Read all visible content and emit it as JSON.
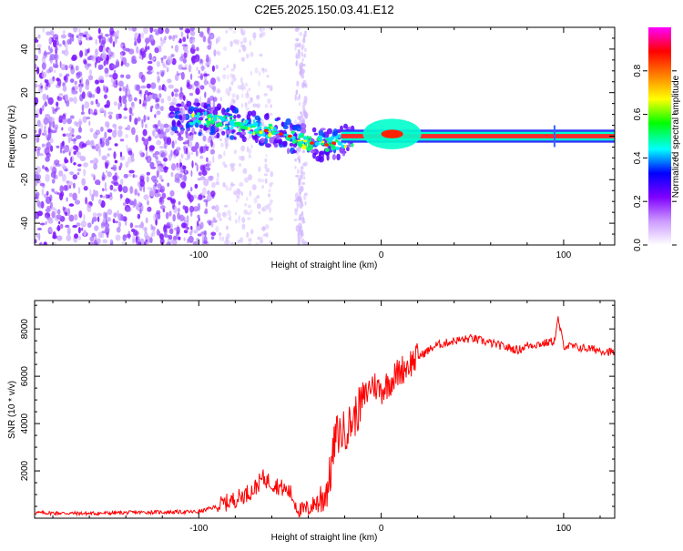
{
  "figure": {
    "title": "C2E5.2025.150.03.41.E12"
  },
  "chart_data": [
    {
      "type": "heatmap",
      "xlabel": "Height of straight line (km)",
      "ylabel": "Frequency (Hz)",
      "xlim": [
        -190,
        128
      ],
      "ylim": [
        -50,
        50
      ],
      "xticks": [
        -100,
        0,
        100
      ],
      "xtick_labels": [
        "-100",
        "0",
        "100"
      ],
      "yticks": [
        -40,
        -20,
        0,
        20,
        40
      ],
      "ytick_labels": [
        "-40",
        "-20",
        "0",
        "20",
        "40"
      ],
      "colorbar": {
        "label": "Normalized spectral amplitude",
        "range": [
          0,
          1
        ],
        "ticks": [
          0,
          0.2,
          0.4,
          0.6,
          0.8
        ],
        "tick_labels": [
          "0.0",
          "0.2",
          "0.4",
          "0.6",
          "0.8"
        ],
        "colors": [
          "#ffffff",
          "#cc99ff",
          "#7f00ff",
          "#0000ff",
          "#00ffff",
          "#00ff00",
          "#ffff00",
          "#ff8000",
          "#ff0000",
          "#ff00ff"
        ]
      },
      "centerline": {
        "x": [
          -110,
          -100,
          -90,
          -80,
          -70,
          -60,
          -50,
          -40,
          -30,
          -20,
          -10,
          0,
          5,
          10,
          15,
          128
        ],
        "y": [
          8,
          8,
          7,
          6,
          4,
          2,
          0,
          -3,
          -4,
          -2,
          0,
          0,
          1,
          0,
          0,
          0
        ]
      }
    },
    {
      "type": "line",
      "xlabel": "Height of straight line (km)",
      "ylabel": "SNR (10 * v/v)",
      "xlim": [
        -190,
        128
      ],
      "ylim": [
        0,
        9200
      ],
      "xticks": [
        -100,
        0,
        100
      ],
      "xtick_labels": [
        "-100",
        "0",
        "100"
      ],
      "yticks": [
        2000,
        4000,
        6000,
        8000
      ],
      "ytick_labels": [
        "2000",
        "4000",
        "6000",
        "8000"
      ],
      "series": [
        {
          "color": "#ff0000",
          "x": [
            -190,
            -160,
            -130,
            -100,
            -90,
            -80,
            -70,
            -65,
            -60,
            -55,
            -50,
            -45,
            -40,
            -35,
            -32,
            -30,
            -28,
            -25,
            -20,
            -15,
            -10,
            -5,
            0,
            10,
            20,
            30,
            40,
            50,
            60,
            70,
            75,
            80,
            90,
            95,
            97,
            100,
            110,
            120,
            128
          ],
          "y": [
            230,
            200,
            250,
            270,
            500,
            800,
            1200,
            1700,
            1500,
            1300,
            1100,
            300,
            400,
            700,
            900,
            1200,
            1800,
            3500,
            3700,
            4200,
            5000,
            5700,
            5400,
            6200,
            6800,
            7300,
            7500,
            7600,
            7400,
            7200,
            7100,
            7300,
            7400,
            7500,
            8400,
            7300,
            7200,
            7100,
            7000
          ]
        }
      ]
    }
  ]
}
